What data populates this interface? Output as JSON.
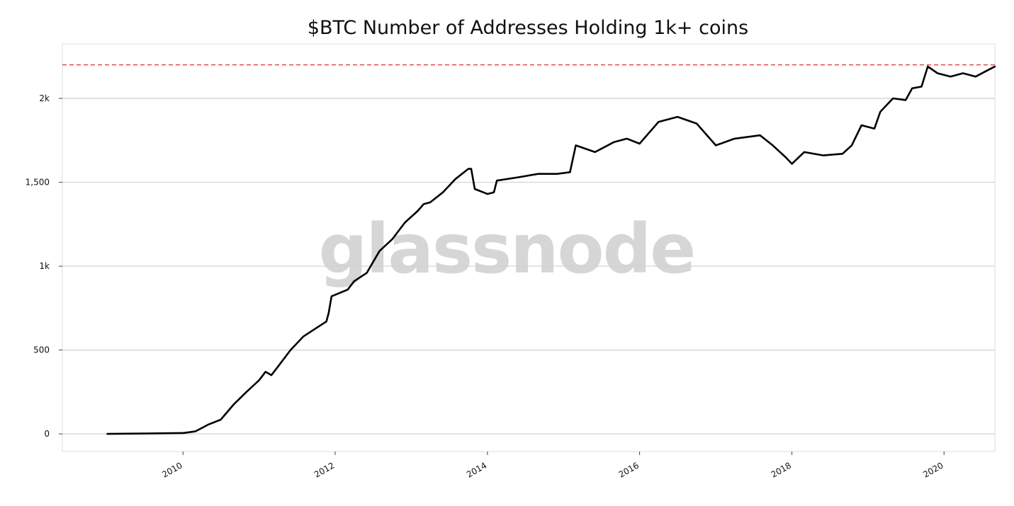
{
  "chart_data": {
    "type": "line",
    "title": "$BTC Number of Addresses Holding 1k+ coins",
    "xlabel": "",
    "ylabel": "",
    "watermark": "glassnode",
    "x_ticks": [
      "2010",
      "2012",
      "2014",
      "2016",
      "2018",
      "2020"
    ],
    "y_ticks": [
      {
        "value": 0,
        "label": "0"
      },
      {
        "value": 500,
        "label": "500"
      },
      {
        "value": 1000,
        "label": "1k"
      },
      {
        "value": 1500,
        "label": "1,500"
      },
      {
        "value": 2000,
        "label": "2k"
      }
    ],
    "xlim": [
      "2008-06-01",
      "2020-09-01"
    ],
    "ylim": [
      -105,
      2325
    ],
    "grid": "horizontal",
    "reference_line": {
      "value": 2200,
      "color": "#e8474c",
      "style": "dashed"
    },
    "line_color": "#000000",
    "series": [
      {
        "x": [
          "2009-01-03",
          "2009-07-01",
          "2010-01-01",
          "2010-03-01",
          "2010-05-01",
          "2010-07-01",
          "2010-09-01",
          "2010-11-01",
          "2011-01-01",
          "2011-02-01",
          "2011-03-01",
          "2011-04-01",
          "2011-06-01",
          "2011-08-01",
          "2011-10-01",
          "2011-11-20",
          "2011-12-01",
          "2011-12-15",
          "2012-03-01",
          "2012-04-01",
          "2012-06-01",
          "2012-08-01",
          "2012-10-01",
          "2012-12-01",
          "2013-02-01",
          "2013-03-01",
          "2013-04-01",
          "2013-06-01",
          "2013-08-01",
          "2013-10-01",
          "2013-10-15",
          "2013-11-01",
          "2014-01-01",
          "2014-02-01",
          "2014-02-15",
          "2014-06-01",
          "2014-09-01",
          "2014-12-01",
          "2015-02-01",
          "2015-03-01",
          "2015-06-01",
          "2015-09-01",
          "2015-11-01",
          "2016-01-01",
          "2016-04-01",
          "2016-07-01",
          "2016-10-01",
          "2017-01-01",
          "2017-04-01",
          "2017-06-01",
          "2017-08-01",
          "2017-10-01",
          "2017-12-01",
          "2018-01-01",
          "2018-03-01",
          "2018-06-01",
          "2018-09-01",
          "2018-10-15",
          "2018-12-01",
          "2019-02-01",
          "2019-03-01",
          "2019-05-01",
          "2019-07-01",
          "2019-08-01",
          "2019-09-15",
          "2019-10-15",
          "2019-12-01",
          "2020-02-01",
          "2020-04-01",
          "2020-06-01",
          "2020-08-01",
          "2020-09-01"
        ],
        "y": [
          0,
          2,
          5,
          15,
          55,
          85,
          175,
          250,
          320,
          370,
          350,
          400,
          500,
          580,
          630,
          670,
          720,
          820,
          860,
          910,
          960,
          1090,
          1160,
          1260,
          1330,
          1370,
          1380,
          1440,
          1520,
          1580,
          1580,
          1460,
          1430,
          1440,
          1510,
          1530,
          1550,
          1550,
          1560,
          1720,
          1680,
          1740,
          1760,
          1730,
          1860,
          1890,
          1850,
          1720,
          1760,
          1770,
          1780,
          1720,
          1650,
          1610,
          1680,
          1660,
          1670,
          1720,
          1840,
          1820,
          1920,
          2000,
          1990,
          2060,
          2070,
          2190,
          2150,
          2130,
          2150,
          2130,
          2170,
          2190
        ]
      }
    ]
  }
}
